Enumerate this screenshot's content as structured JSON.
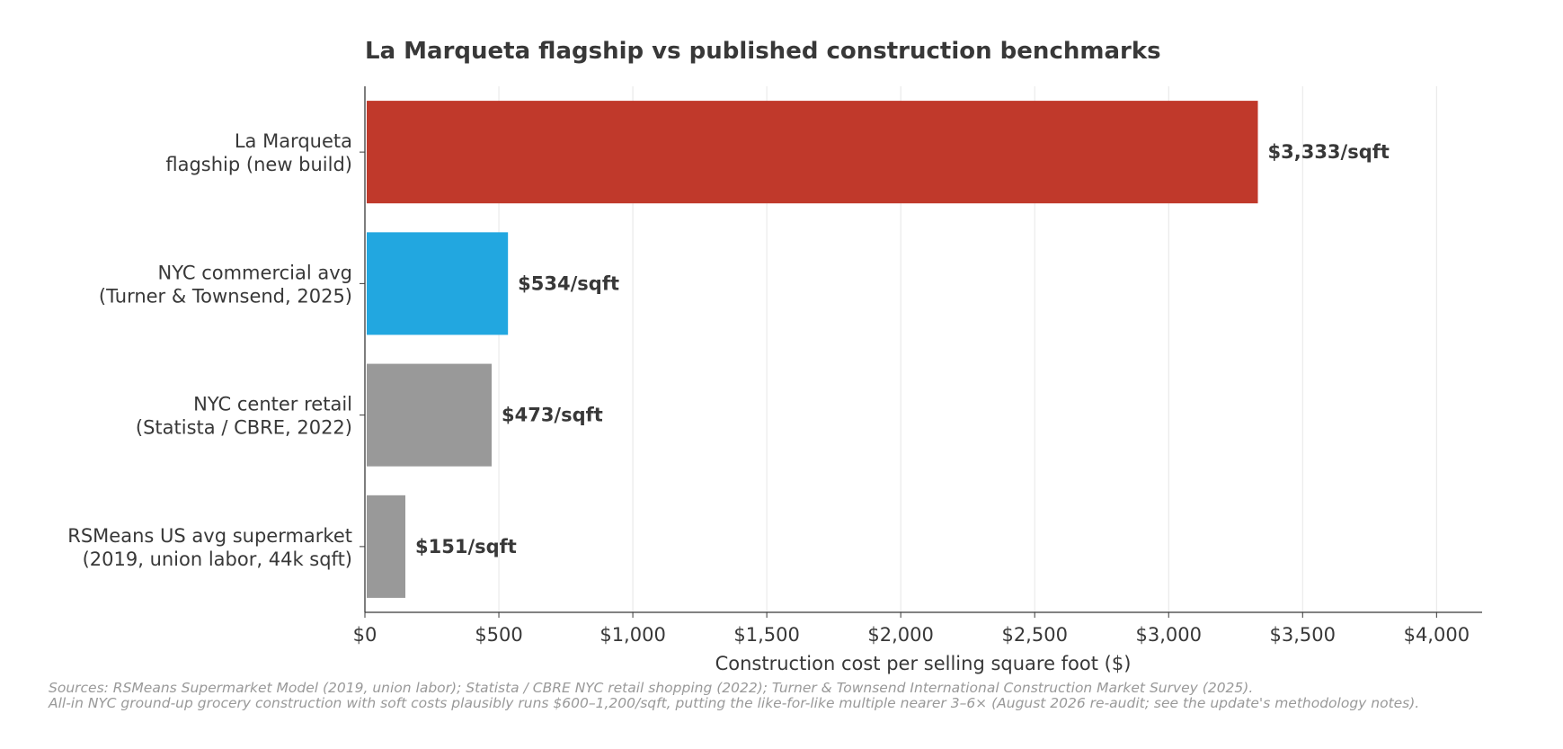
{
  "chart_data": {
    "type": "bar",
    "orientation": "horizontal",
    "title": "La Marqueta flagship vs published construction benchmarks",
    "xlabel": "Construction cost per selling square foot ($)",
    "ylabel": "",
    "xlim": [
      0,
      4170
    ],
    "grid": "x",
    "categories": [
      [
        "La Marqueta",
        "flagship (new build)"
      ],
      [
        "NYC commercial avg",
        "(Turner & Townsend, 2025)"
      ],
      [
        "NYC center retail",
        "(Statista / CBRE, 2022)"
      ],
      [
        "RSMeans US avg supermarket",
        "(2019, union labor, 44k sqft)"
      ]
    ],
    "values": [
      3333,
      534,
      473,
      151
    ],
    "value_labels": [
      "$3,333/sqft",
      "$534/sqft",
      "$473/sqft",
      "$151/sqft"
    ],
    "colors": [
      "#c0392b",
      "#22a7e0",
      "#999999",
      "#999999"
    ],
    "xticks": [
      0,
      500,
      1000,
      1500,
      2000,
      2500,
      3000,
      3500,
      4000
    ],
    "xtick_labels": [
      "$0",
      "$500",
      "$1,000",
      "$1,500",
      "$2,000",
      "$2,500",
      "$3,000",
      "$3,500",
      "$4,000"
    ]
  },
  "footnotes": [
    "Sources: RSMeans Supermarket Model (2019, union labor); Statista / CBRE NYC retail shopping (2022); Turner & Townsend International Construction Market Survey (2025).",
    "All-in NYC ground-up grocery construction with soft costs plausibly runs $600–1,200/sqft, putting the like-for-like multiple nearer 3–6× (August 2026 re-audit; see the update's methodology notes)."
  ]
}
